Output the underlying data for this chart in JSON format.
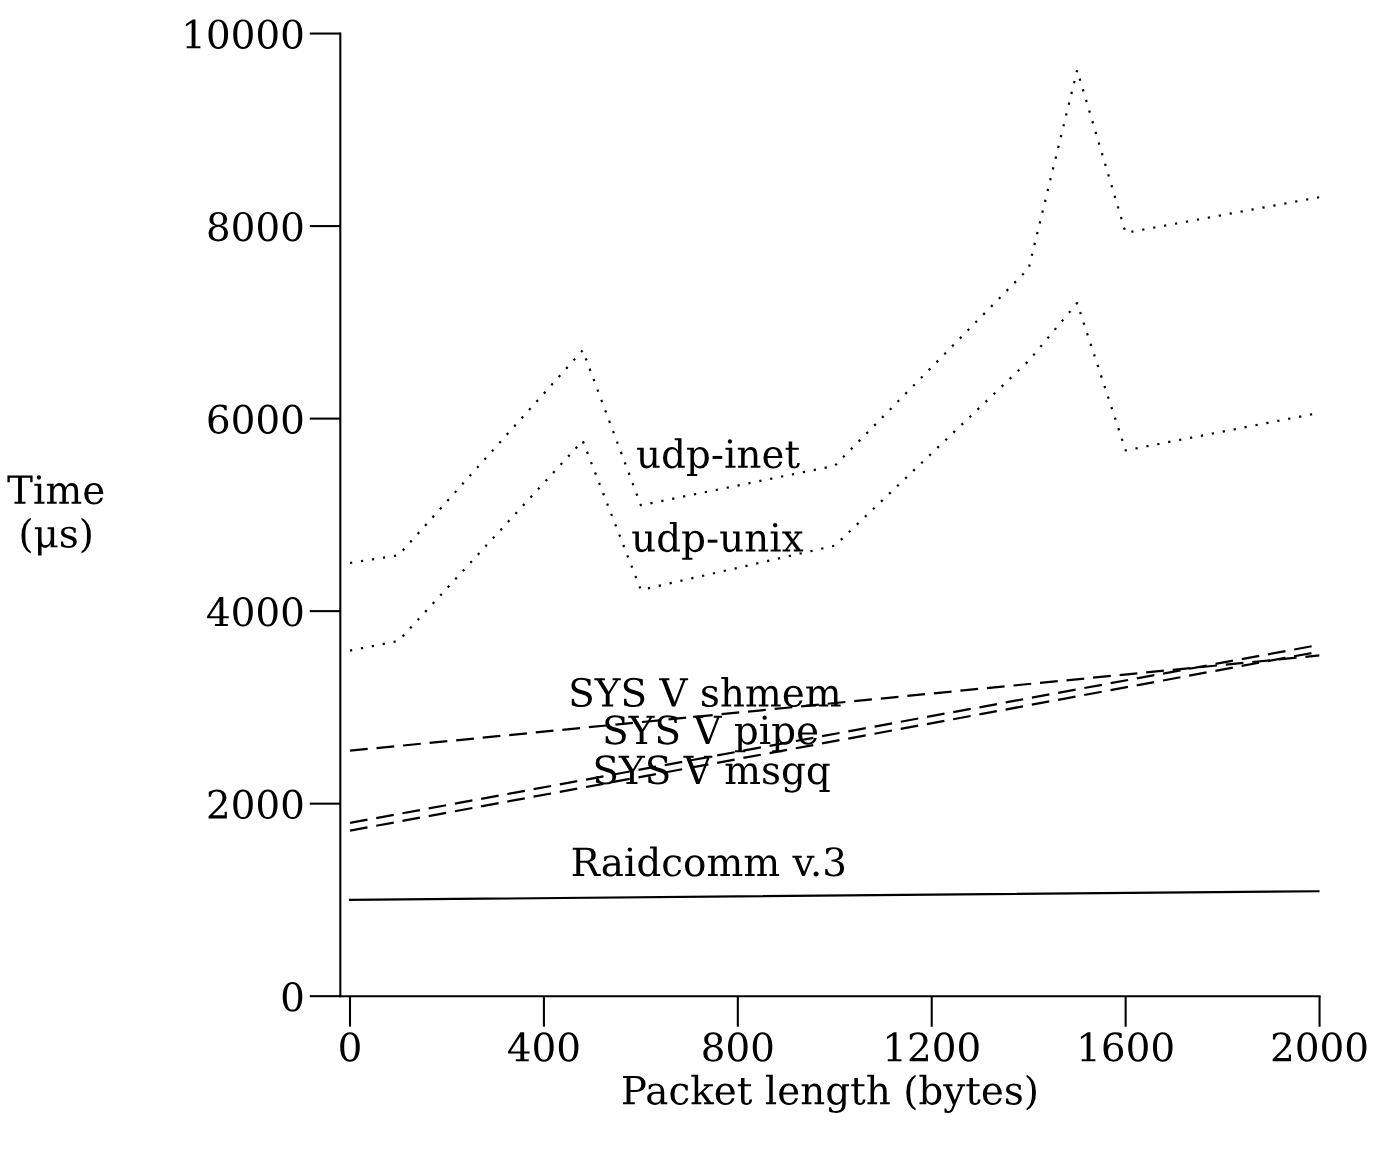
{
  "chart_data": {
    "type": "line",
    "xlabel": "Packet length (bytes)",
    "ylabel": "Time\n(μs)",
    "xlim": [
      -20,
      2000
    ],
    "ylim": [
      0,
      10000
    ],
    "xticks": [
      0,
      400,
      800,
      1200,
      1600,
      2000
    ],
    "yticks": [
      0,
      2000,
      4000,
      6000,
      8000,
      10000
    ],
    "grid": false,
    "legend": false,
    "series": [
      {
        "name": "udp-inet",
        "color": "#000000",
        "line_style": "dotted",
        "x": [
          0,
          100,
          480,
          600,
          1000,
          1400,
          1500,
          1600,
          2000
        ],
        "values": [
          4500,
          4580,
          6710,
          5100,
          5510,
          7560,
          9620,
          7930,
          8300
        ]
      },
      {
        "name": "udp-unix",
        "color": "#000000",
        "line_style": "dotted",
        "x": [
          0,
          100,
          480,
          600,
          1000,
          1400,
          1500,
          1600,
          2000
        ],
        "values": [
          3590,
          3690,
          5770,
          4220,
          4680,
          6600,
          7200,
          5670,
          6060
        ]
      },
      {
        "name": "SYS V shmem",
        "color": "#000000",
        "line_style": "dashed",
        "x": [
          0,
          2000
        ],
        "values": [
          2550,
          3540
        ]
      },
      {
        "name": "SYS V pipe",
        "color": "#000000",
        "line_style": "dashed",
        "x": [
          0,
          2000
        ],
        "values": [
          1800,
          3650
        ]
      },
      {
        "name": "SYS V msgq",
        "color": "#000000",
        "line_style": "dashed",
        "x": [
          0,
          2000
        ],
        "values": [
          1720,
          3580
        ]
      },
      {
        "name": "Raidcomm v.3",
        "color": "#000000",
        "line_style": "solid",
        "x": [
          0,
          2000
        ],
        "values": [
          1000,
          1090
        ]
      }
    ]
  }
}
